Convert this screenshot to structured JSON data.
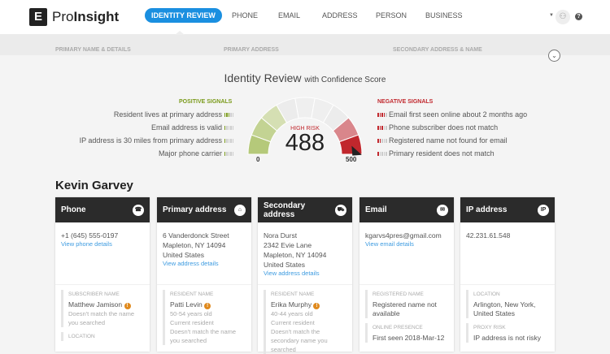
{
  "header": {
    "logo_letter": "E",
    "brand_pre": "Pro",
    "brand_bold": "Insight",
    "nav": [
      {
        "label": "IDENTITY REVIEW",
        "active": true
      },
      {
        "label": "PHONE"
      },
      {
        "label": "EMAIL"
      },
      {
        "label": "ADDRESS"
      },
      {
        "label": "PERSON"
      },
      {
        "label": "BUSINESS"
      }
    ],
    "user_icon": "user-icon",
    "help_icon": "help-icon"
  },
  "sections": [
    "PRIMARY NAME & DETAILS",
    "PRIMARY ADDRESS",
    "SECONDARY ADDRESS & NAME"
  ],
  "review": {
    "title": "Identity Review",
    "subtitle": "with Confidence Score",
    "gauge": {
      "risk_label": "HIGH RISK",
      "score": "488",
      "min": "0",
      "max": "500",
      "score_value": 488,
      "max_value": 500,
      "colors": {
        "green": "#b5c97a",
        "red": "#c1272d",
        "risk": "#c1272d"
      }
    },
    "positive": {
      "heading": "POSITIVE SIGNALS",
      "color": "#7a9a1a",
      "items": [
        {
          "text": "Resident lives at primary address",
          "strength": 3
        },
        {
          "text": "Email address is valid",
          "strength": 1
        },
        {
          "text": "IP address is 30 miles from primary address",
          "strength": 1
        },
        {
          "text": "Major phone carrier",
          "strength": 1
        }
      ]
    },
    "negative": {
      "heading": "NEGATIVE SIGNALS",
      "color": "#c1272d",
      "items": [
        {
          "text": "Email first seen online about 2 months ago",
          "strength": 4
        },
        {
          "text": "Phone subscriber does not match",
          "strength": 3
        },
        {
          "text": "Registered name not found for email",
          "strength": 2
        },
        {
          "text": "Primary resident does not match",
          "strength": 1
        }
      ]
    }
  },
  "person": {
    "name": "Kevin Garvey"
  },
  "cards": [
    {
      "title": "Phone",
      "icon": "☎",
      "lines": [
        "+1 (645) 555-0197"
      ],
      "link": "View phone details",
      "details": [
        {
          "label": "SUBSCRIBER NAME",
          "value": "Matthew Jamison",
          "warn": true,
          "notes": [
            "Doesn't match the name you searched"
          ]
        },
        {
          "label": "LOCATION",
          "value": "",
          "notes": []
        }
      ]
    },
    {
      "title": "Primary address",
      "icon": "⌂",
      "lines": [
        "6 Vanderdonck Street",
        "Mapleton, NY 14094",
        "United States"
      ],
      "link": "View address details",
      "details": [
        {
          "label": "RESIDENT NAME",
          "value": "Patti Levin",
          "warn": true,
          "notes": [
            "50-54 years old",
            "Current resident",
            "Doesn't match the name you searched"
          ]
        }
      ]
    },
    {
      "title": "Secondary address",
      "icon": "⛟",
      "lines": [
        "Nora Durst",
        "2342 Evie Lane",
        "Mapleton, NY 14094",
        "United States"
      ],
      "link": "View address details",
      "details": [
        {
          "label": "RESIDENT NAME",
          "value": "Erika Murphy",
          "warn": true,
          "notes": [
            "40-44 years old",
            "Current resident",
            "Doesn't match the secondary name you searched"
          ]
        }
      ]
    },
    {
      "title": "Email",
      "icon": "✉",
      "lines": [
        "kgarvs4pres@gmail.com"
      ],
      "link": "View email details",
      "details": [
        {
          "label": "REGISTERED NAME",
          "value": "Registered name not available",
          "notes": []
        },
        {
          "label": "ONLINE PRESENCE",
          "value": "First seen 2018-Mar-12",
          "notes": []
        }
      ]
    },
    {
      "title": "IP address",
      "icon": "IP",
      "lines": [
        "42.231.61.548"
      ],
      "link": "",
      "details": [
        {
          "label": "LOCATION",
          "value": "Arlington, New York, United States",
          "notes": []
        },
        {
          "label": "PROXY RISK",
          "value": "IP address is not risky",
          "notes": []
        }
      ]
    }
  ]
}
